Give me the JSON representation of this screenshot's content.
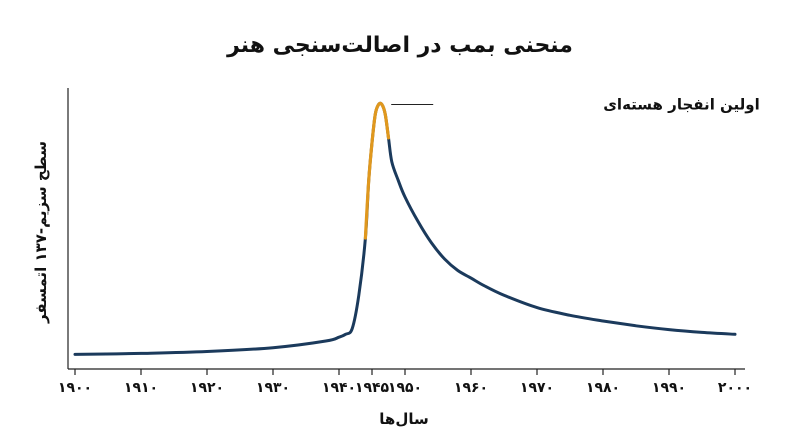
{
  "chart_data": {
    "type": "line",
    "title": "منحنی بمب در اصالت‌سنجی هنر",
    "xlabel": "سال‌ها",
    "ylabel": "سطح سزیم-۱۳۷ اتمسفر",
    "xlim": [
      1900,
      2000
    ],
    "x_ticks": [
      1900,
      1910,
      1920,
      1930,
      1940,
      1945,
      1950,
      1960,
      1970,
      1980,
      1990,
      2000
    ],
    "x_tick_labels": [
      "۱۹۰۰",
      "۱۹۱۰",
      "۱۹۲۰",
      "۱۹۳۰",
      "۱۹۴۰",
      "۱۹۴۵",
      "۱۹۵۰",
      "۱۹۶۰",
      "۱۹۷۰",
      "۱۹۸۰",
      "۱۹۹۰",
      "۲۰۰۰"
    ],
    "grid": false,
    "colors": {
      "baseline": "#1b3a5c",
      "highlight": "#e0981e"
    },
    "x": [
      1900,
      1910,
      1920,
      1930,
      1938,
      1940,
      1941,
      1942,
      1943,
      1944,
      1944.5,
      1945,
      1945.5,
      1946,
      1946.5,
      1947,
      1947.5,
      1948,
      1949,
      1950,
      1952,
      1954,
      1956,
      1958,
      1960,
      1962,
      1965,
      1970,
      1975,
      1980,
      1985,
      1990,
      1995,
      2000
    ],
    "y": [
      0.8,
      0.9,
      1.1,
      1.5,
      2.2,
      2.6,
      2.9,
      3.5,
      7,
      13,
      19,
      23,
      26,
      27,
      27,
      26,
      23.5,
      21,
      19,
      17.3,
      14.7,
      12.5,
      10.8,
      9.6,
      8.8,
      8,
      7,
      5.7,
      4.9,
      4.3,
      3.8,
      3.4,
      3.1,
      2.9
    ],
    "highlight_range": [
      1944,
      1947.5
    ],
    "annotations": [
      {
        "text": "اولین انفجار هسته‌ای",
        "x": 1947,
        "y": 27
      }
    ]
  }
}
